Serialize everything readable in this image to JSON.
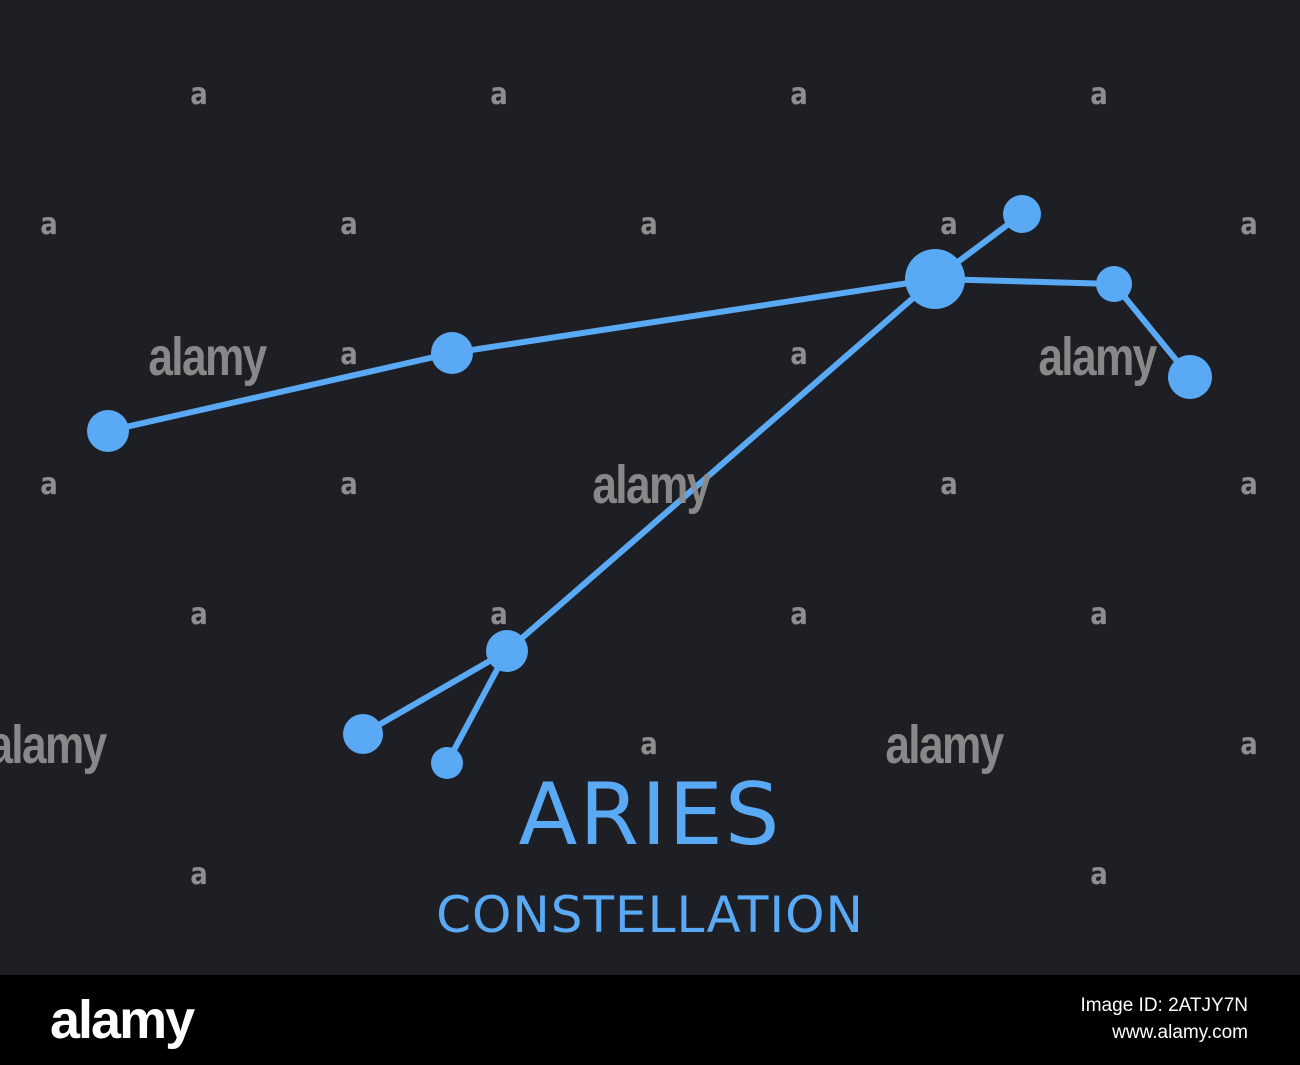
{
  "title": "ARIES",
  "subtitle": "CONSTELLATION",
  "colors": {
    "background": "#1e1f24",
    "accent": "#5aa9f5",
    "watermark": "#8e8e8e",
    "footer_bg": "#000000",
    "footer_text": "#ffffff"
  },
  "watermark": {
    "mark": "a",
    "word": "alamy"
  },
  "footer": {
    "logo": "alamy",
    "image_id": "Image ID: 2ATJY7N",
    "site": "www.alamy.com"
  }
}
